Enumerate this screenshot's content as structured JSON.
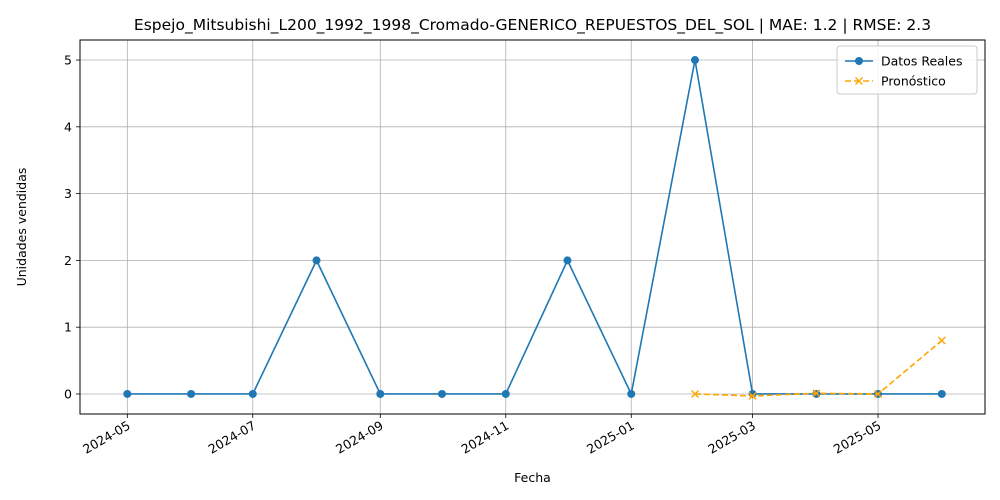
{
  "chart_data": {
    "type": "line",
    "title": "Espejo_Mitsubishi_L200_1992_1998_Cromado-GENERICO_REPUESTOS_DEL_SOL | MAE: 1.2 | RMSE: 2.3",
    "xlabel": "Fecha",
    "ylabel": "Unidades vendidas",
    "xlim": [
      "2024-04-08",
      "2025-06-22"
    ],
    "ylim": [
      -0.3,
      5.3
    ],
    "x_ticks": [
      "2024-05",
      "2024-07",
      "2024-09",
      "2024-11",
      "2025-01",
      "2025-03",
      "2025-05"
    ],
    "y_ticks": [
      0,
      1,
      2,
      3,
      4,
      5
    ],
    "grid": true,
    "legend_position": "top-right",
    "series": [
      {
        "name": "Datos Reales",
        "color": "#1f77b4",
        "style": "solid",
        "marker": "circle",
        "x": [
          "2024-05-01",
          "2024-06-01",
          "2024-07-01",
          "2024-08-01",
          "2024-09-01",
          "2024-10-01",
          "2024-11-01",
          "2024-12-01",
          "2025-01-01",
          "2025-02-01",
          "2025-03-01",
          "2025-04-01",
          "2025-05-01",
          "2025-06-01"
        ],
        "values": [
          0,
          0,
          0,
          2,
          0,
          0,
          0,
          2,
          0,
          5,
          0,
          0,
          0,
          0
        ]
      },
      {
        "name": "Pronóstico",
        "color": "#ffa500",
        "style": "dashed",
        "marker": "x",
        "x": [
          "2025-02-01",
          "2025-03-01",
          "2025-04-01",
          "2025-05-01",
          "2025-06-01"
        ],
        "values": [
          0.0,
          -0.03,
          0.01,
          0.0,
          0.8
        ]
      }
    ]
  }
}
